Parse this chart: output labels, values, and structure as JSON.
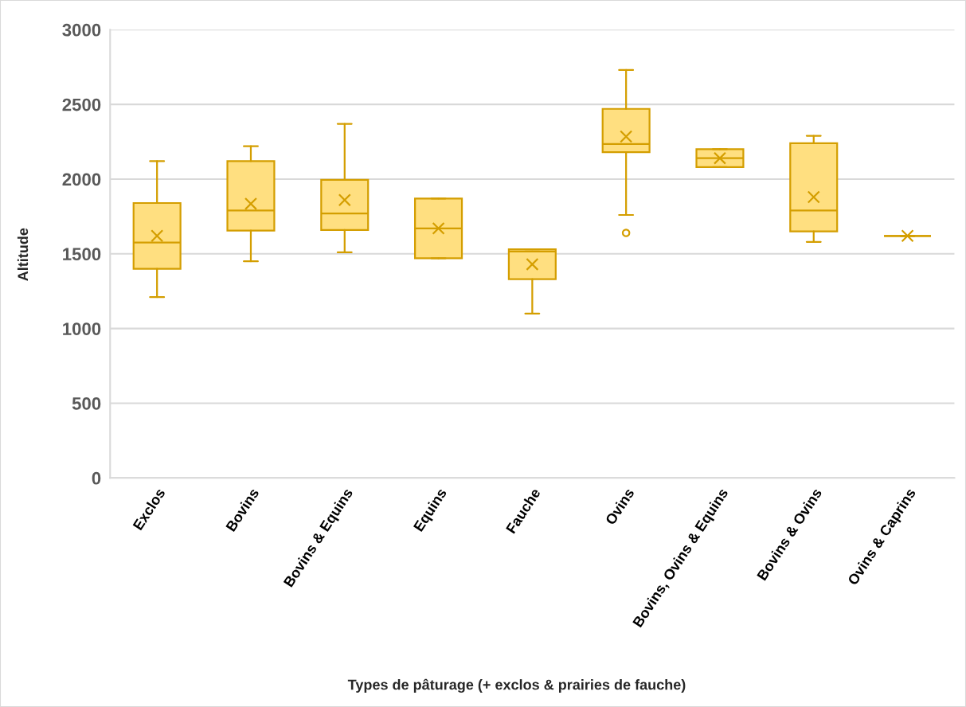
{
  "chart_data": {
    "type": "box",
    "xlabel": "Types de pâturage (+ exclos & prairies de fauche)",
    "ylabel": "Altitude",
    "categories": [
      "Exclos",
      "Bovins",
      "Bovins & Equins",
      "Equins",
      "Fauche",
      "Ovins",
      "Bovins, Ovins & Equins",
      "Bovins & Ovins",
      "Ovins & Caprins"
    ],
    "series": [
      {
        "color": "#d49e00",
        "boxes": [
          {
            "low": 1210,
            "q1": 1400,
            "median": 1575,
            "q3": 1840,
            "high": 2120,
            "mean": 1620
          },
          {
            "low": 1450,
            "q1": 1655,
            "median": 1790,
            "q3": 2120,
            "high": 2220,
            "mean": 1835
          },
          {
            "low": 1510,
            "q1": 1660,
            "median": 1770,
            "q3": 1995,
            "high": 2370,
            "mean": 1860
          },
          {
            "low": 1470,
            "q1": 1470,
            "median": 1670,
            "q3": 1870,
            "high": 1870,
            "mean": 1670
          },
          {
            "low": 1100,
            "q1": 1330,
            "median": 1515,
            "q3": 1530,
            "high": 1530,
            "mean": 1430
          },
          {
            "low": 1760,
            "q1": 2180,
            "median": 2235,
            "q3": 2470,
            "high": 2730,
            "mean": 2285,
            "outliers": [
              1640
            ]
          },
          {
            "low": 2080,
            "q1": 2080,
            "median": 2140,
            "q3": 2200,
            "high": 2200,
            "mean": 2140
          },
          {
            "low": 1580,
            "q1": 1650,
            "median": 1790,
            "q3": 2240,
            "high": 2290,
            "mean": 1880
          },
          {
            "low": 1620,
            "q1": 1620,
            "median": 1620,
            "q3": 1620,
            "high": 1620,
            "mean": 1620
          }
        ]
      }
    ],
    "ylim": [
      0,
      3000
    ],
    "yticks": [
      0,
      500,
      1000,
      1500,
      2000,
      2500,
      3000
    ],
    "grid": "y",
    "marker": "cross"
  }
}
